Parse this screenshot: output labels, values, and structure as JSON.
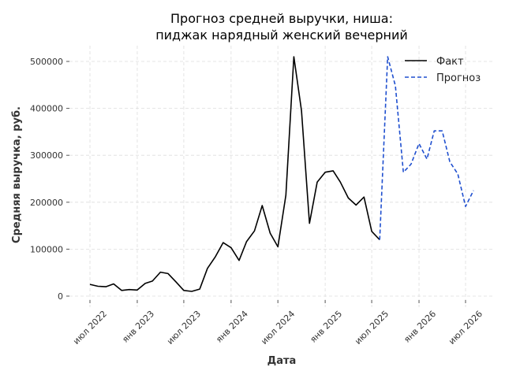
{
  "chart_data": {
    "type": "line",
    "title": [
      "Прогноз средней выручки, ниша:",
      "пиджак нарядный женский вечерний"
    ],
    "xlabel": "Дата",
    "ylabel": "Средняя выручка, руб.",
    "ylim": [
      0,
      500000
    ],
    "yticks": [
      0,
      100000,
      200000,
      300000,
      400000,
      500000
    ],
    "ytick_labels": [
      "0",
      "100000",
      "200000",
      "300000",
      "400000",
      "500000"
    ],
    "xticks": [
      "2022-07-01",
      "2023-01-01",
      "2023-07-01",
      "2024-01-01",
      "2024-07-01",
      "2025-01-01",
      "2025-07-01",
      "2026-01-01",
      "2026-07-01"
    ],
    "xtick_labels": [
      "июл 2022",
      "янв 2023",
      "июл 2023",
      "янв 2024",
      "июл 2024",
      "янв 2025",
      "июл 2025",
      "янв 2026",
      "июл 2026"
    ],
    "grid": true,
    "legend_position": "top-right",
    "series": [
      {
        "name": "Факт",
        "color": "#000000",
        "style": "solid",
        "points": [
          [
            "2022-07-01",
            25000
          ],
          [
            "2022-08-01",
            21000
          ],
          [
            "2022-09-01",
            20000
          ],
          [
            "2022-10-01",
            26000
          ],
          [
            "2022-11-01",
            12000
          ],
          [
            "2022-12-01",
            14000
          ],
          [
            "2023-01-01",
            13000
          ],
          [
            "2023-02-01",
            27000
          ],
          [
            "2023-03-01",
            32000
          ],
          [
            "2023-04-01",
            51000
          ],
          [
            "2023-05-01",
            48000
          ],
          [
            "2023-06-01",
            30000
          ],
          [
            "2023-07-01",
            12000
          ],
          [
            "2023-08-01",
            10000
          ],
          [
            "2023-09-01",
            15000
          ],
          [
            "2023-10-01",
            59000
          ],
          [
            "2023-11-01",
            84000
          ],
          [
            "2023-12-01",
            114000
          ],
          [
            "2024-01-01",
            103000
          ],
          [
            "2024-02-01",
            76000
          ],
          [
            "2024-03-01",
            116000
          ],
          [
            "2024-04-01",
            139000
          ],
          [
            "2024-05-01",
            193000
          ],
          [
            "2024-06-01",
            134000
          ],
          [
            "2024-07-01",
            105000
          ],
          [
            "2024-08-01",
            215000
          ],
          [
            "2024-09-01",
            510000
          ],
          [
            "2024-10-01",
            395000
          ],
          [
            "2024-11-01",
            155000
          ],
          [
            "2024-12-01",
            243000
          ],
          [
            "2025-01-01",
            264000
          ],
          [
            "2025-02-01",
            267000
          ],
          [
            "2025-03-01",
            243000
          ],
          [
            "2025-04-01",
            209000
          ],
          [
            "2025-05-01",
            194000
          ],
          [
            "2025-06-01",
            211000
          ],
          [
            "2025-07-01",
            138000
          ],
          [
            "2025-08-01",
            120000
          ]
        ]
      },
      {
        "name": "Прогноз",
        "color": "#1f4fcf",
        "style": "dashed",
        "points": [
          [
            "2025-08-01",
            120000
          ],
          [
            "2025-09-01",
            510000
          ],
          [
            "2025-10-01",
            448000
          ],
          [
            "2025-11-01",
            264000
          ],
          [
            "2025-12-01",
            281000
          ],
          [
            "2026-01-01",
            325000
          ],
          [
            "2026-02-01",
            292000
          ],
          [
            "2026-03-01",
            352000
          ],
          [
            "2026-04-01",
            352000
          ],
          [
            "2026-05-01",
            286000
          ],
          [
            "2026-06-01",
            260000
          ],
          [
            "2026-07-01",
            191000
          ],
          [
            "2026-08-01",
            225000
          ]
        ]
      }
    ]
  }
}
